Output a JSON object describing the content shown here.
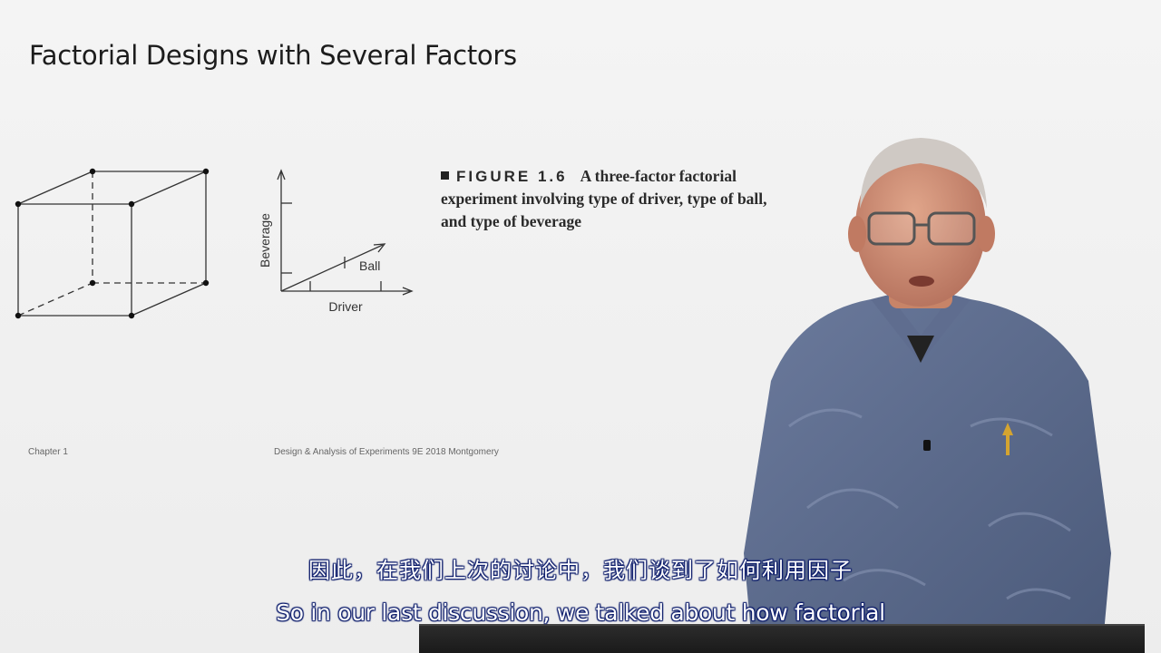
{
  "slide": {
    "title": "Factorial Designs with Several Factors",
    "footer_left": "Chapter 1",
    "footer_center": "Design & Analysis of Experiments 9E 2018 Montgomery"
  },
  "figure": {
    "label": "FIGURE 1.6",
    "caption": "A three-factor factorial experiment involving type of driver, type of ball, and type of beverage",
    "axes": {
      "vertical": "Beverage",
      "horizontal": "Driver",
      "diagonal": "Ball"
    }
  },
  "subtitles": {
    "zh": "因此，在我们上次的讨论中，我们谈到了如何利用因子",
    "en": "So in our last discussion, we talked about how factorial"
  },
  "colors": {
    "subtitle_outline": "#0a1a6a",
    "shirt": "#5a6a8c"
  }
}
